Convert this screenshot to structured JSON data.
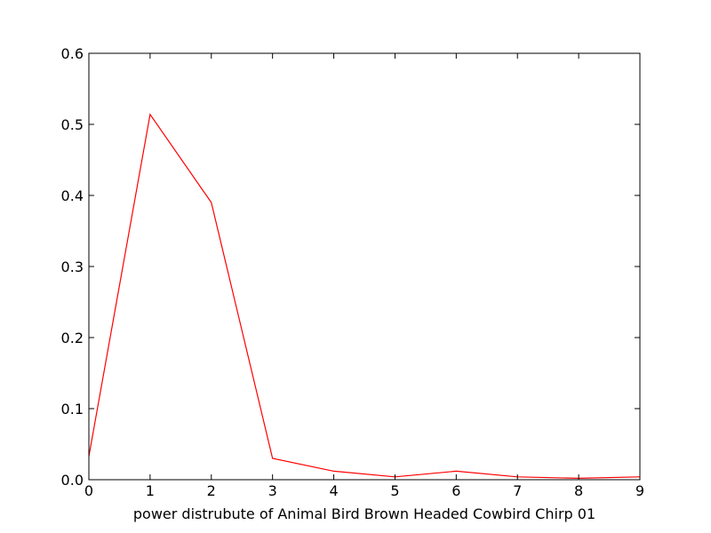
{
  "chart_data": {
    "type": "line",
    "title": "",
    "xlabel": "power distrubute of Animal Bird Brown Headed Cowbird Chirp 01",
    "ylabel": "",
    "xlim": [
      0,
      9
    ],
    "ylim": [
      0,
      0.6
    ],
    "x_ticks": [
      "0",
      "1",
      "2",
      "3",
      "4",
      "5",
      "6",
      "7",
      "8",
      "9"
    ],
    "y_ticks": [
      "0.0",
      "0.1",
      "0.2",
      "0.3",
      "0.4",
      "0.5",
      "0.6"
    ],
    "grid": false,
    "legend": "none",
    "series": [
      {
        "color": "#ff0000",
        "x": [
          0,
          1,
          2,
          3,
          4,
          5,
          6,
          7,
          8,
          9
        ],
        "y": [
          0.033,
          0.514,
          0.39,
          0.03,
          0.012,
          0.004,
          0.012,
          0.004,
          0.002,
          0.004
        ]
      }
    ]
  }
}
